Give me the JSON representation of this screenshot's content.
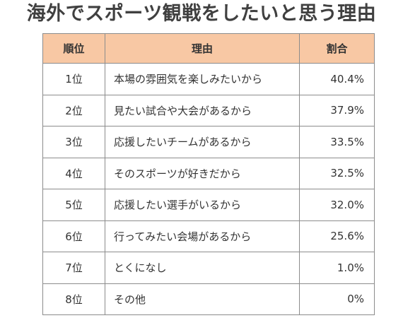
{
  "title": "海外でスポーツ観戦をしたいと思う理由",
  "colors": {
    "header_bg": "#f8c8a4",
    "border": "#8c8c8c",
    "text": "#333333",
    "title_text": "#404040"
  },
  "chart_data": {
    "type": "table",
    "title": "海外でスポーツ観戦をしたいと思う理由",
    "columns": [
      "順位",
      "理由",
      "割合"
    ],
    "rows": [
      {
        "rank": "1位",
        "reason": "本場の雰囲気を楽しみたいから",
        "pct": "40.4%",
        "value": 40.4
      },
      {
        "rank": "2位",
        "reason": "見たい試合や大会があるから",
        "pct": "37.9%",
        "value": 37.9
      },
      {
        "rank": "3位",
        "reason": "応援したいチームがあるから",
        "pct": "33.5%",
        "value": 33.5
      },
      {
        "rank": "4位",
        "reason": "そのスポーツが好きだから",
        "pct": "32.5%",
        "value": 32.5
      },
      {
        "rank": "5位",
        "reason": "応援したい選手がいるから",
        "pct": "32.0%",
        "value": 32.0
      },
      {
        "rank": "6位",
        "reason": "行ってみたい会場があるから",
        "pct": "25.6%",
        "value": 25.6
      },
      {
        "rank": "7位",
        "reason": "とくになし",
        "pct": "1.0%",
        "value": 1.0
      },
      {
        "rank": "8位",
        "reason": "その他",
        "pct": "0%",
        "value": 0
      }
    ]
  }
}
